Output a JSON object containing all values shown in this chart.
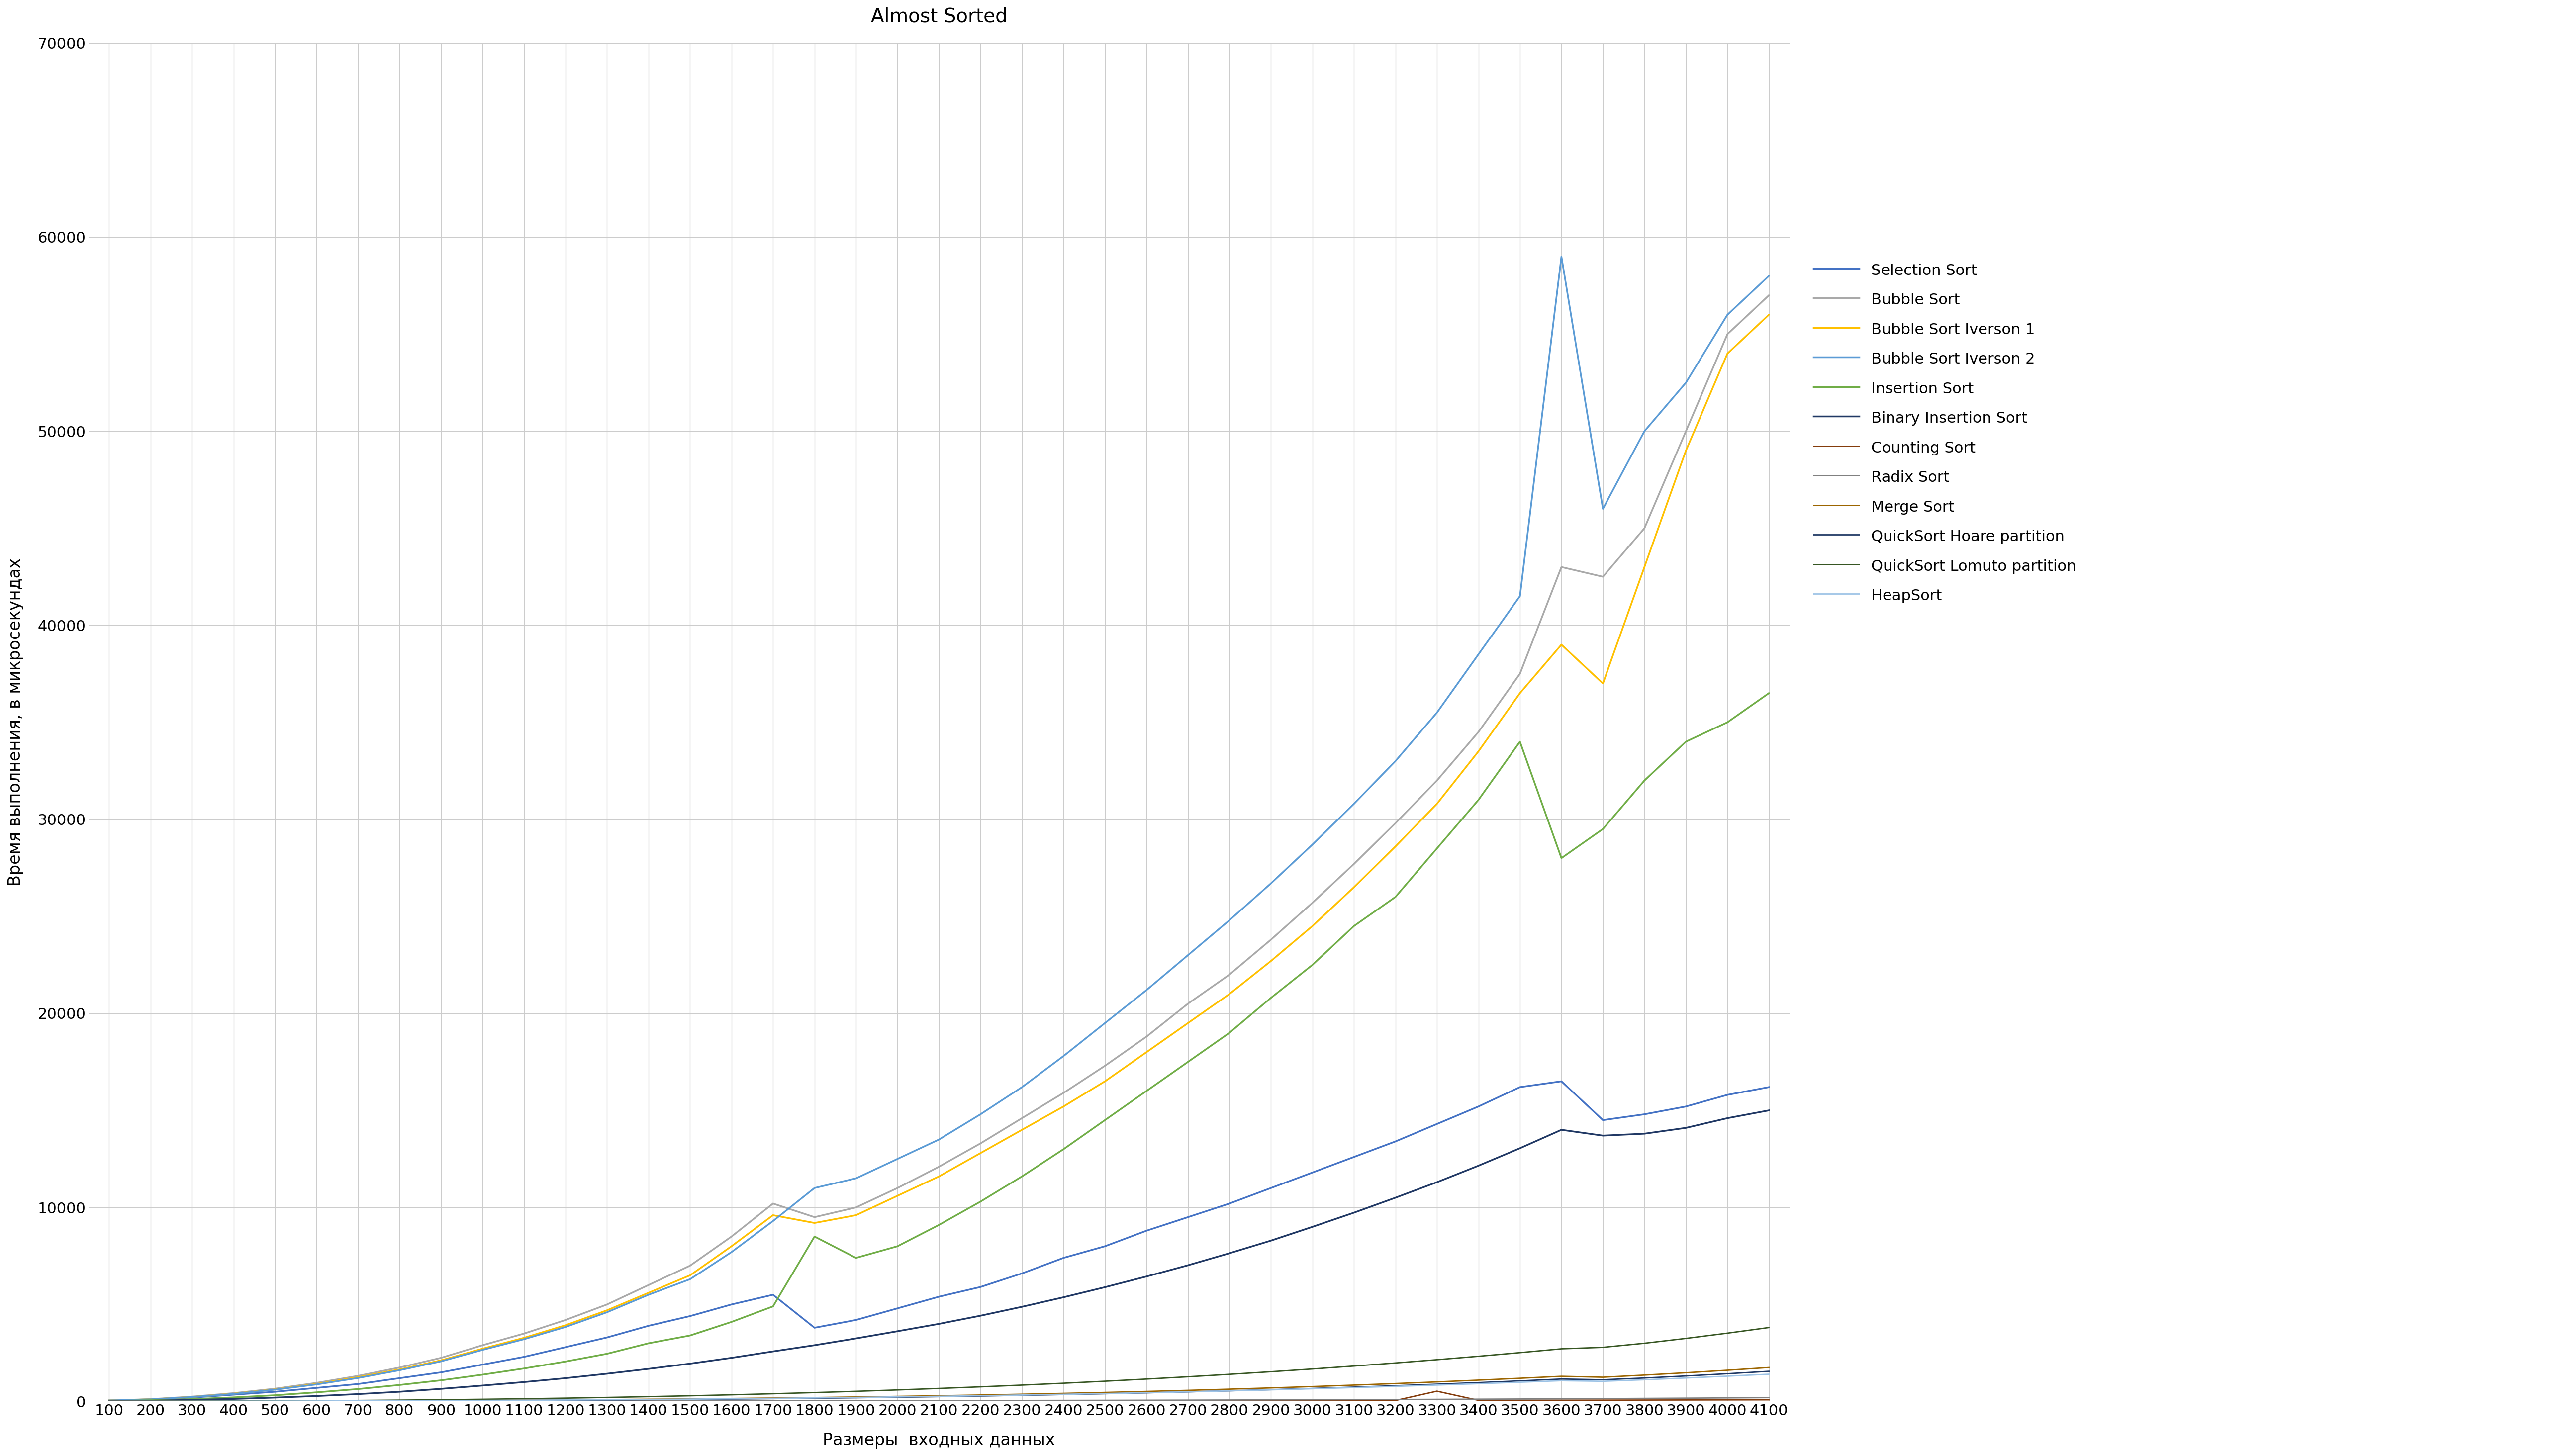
{
  "title": "Almost Sorted",
  "xlabel": "Размеры  входных данных",
  "ylabel": "Время выполнения, в микросекундах",
  "x": [
    100,
    200,
    300,
    400,
    500,
    600,
    700,
    800,
    900,
    1000,
    1100,
    1200,
    1300,
    1400,
    1500,
    1600,
    1700,
    1800,
    1900,
    2000,
    2100,
    2200,
    2300,
    2400,
    2500,
    2600,
    2700,
    2800,
    2900,
    3000,
    3100,
    3200,
    3300,
    3400,
    3500,
    3600,
    3700,
    3800,
    3900,
    4000,
    4100
  ],
  "series": {
    "Selection Sort": {
      "color": "#4472C4",
      "linewidth": 2.5,
      "values": [
        50,
        100,
        200,
        350,
        500,
        700,
        900,
        1200,
        1500,
        1900,
        2300,
        2800,
        3300,
        3900,
        4400,
        5000,
        5500,
        3800,
        4200,
        4800,
        5400,
        5900,
        6600,
        7400,
        8000,
        8800,
        9500,
        10200,
        11000,
        11800,
        12600,
        13400,
        14300,
        15200,
        16200,
        16500,
        14500,
        14800,
        15200,
        15800,
        16200
      ]
    },
    "Bubble Sort": {
      "color": "#A9A9A9",
      "linewidth": 2.5,
      "values": [
        50,
        120,
        250,
        430,
        660,
        960,
        1320,
        1750,
        2250,
        2900,
        3500,
        4200,
        5000,
        6000,
        7000,
        8500,
        10200,
        9500,
        10000,
        11000,
        12100,
        13300,
        14600,
        15900,
        17300,
        18800,
        20500,
        22000,
        23800,
        25700,
        27700,
        29800,
        32000,
        34500,
        37500,
        43000,
        42500,
        45000,
        50000,
        55000,
        57000
      ]
    },
    "Bubble Sort Iverson 1": {
      "color": "#FFC000",
      "linewidth": 2.5,
      "values": [
        50,
        110,
        230,
        400,
        620,
        900,
        1250,
        1650,
        2120,
        2720,
        3280,
        3930,
        4700,
        5600,
        6500,
        8000,
        9600,
        9200,
        9600,
        10600,
        11600,
        12800,
        14000,
        15200,
        16500,
        18000,
        19500,
        21000,
        22700,
        24500,
        26500,
        28600,
        30800,
        33500,
        36500,
        39000,
        37000,
        43000,
        49000,
        54000,
        56000
      ]
    },
    "Bubble Sort Iverson 2": {
      "color": "#5B9BD5",
      "linewidth": 2.5,
      "values": [
        50,
        110,
        230,
        390,
        610,
        880,
        1210,
        1610,
        2070,
        2660,
        3210,
        3840,
        4600,
        5500,
        6300,
        7700,
        9300,
        11000,
        11500,
        12500,
        13500,
        14800,
        16200,
        17800,
        19500,
        21200,
        23000,
        24800,
        26700,
        28700,
        30800,
        33000,
        35500,
        38500,
        41500,
        59000,
        46000,
        50000,
        52500,
        56000,
        58000
      ]
    },
    "Insertion Sort": {
      "color": "#70AD47",
      "linewidth": 2.5,
      "values": [
        30,
        60,
        120,
        210,
        320,
        470,
        640,
        850,
        1090,
        1380,
        1700,
        2060,
        2460,
        3000,
        3400,
        4100,
        4900,
        8500,
        7400,
        8000,
        9100,
        10300,
        11600,
        13000,
        14500,
        16000,
        17500,
        19000,
        20800,
        22500,
        24500,
        26000,
        28500,
        31000,
        34000,
        28000,
        29500,
        32000,
        34000,
        35000,
        36500
      ]
    },
    "Binary Insertion Sort": {
      "color": "#203864",
      "linewidth": 2.5,
      "values": [
        20,
        40,
        80,
        130,
        200,
        280,
        380,
        500,
        650,
        820,
        1000,
        1200,
        1430,
        1680,
        1950,
        2250,
        2580,
        2900,
        3250,
        3620,
        4000,
        4420,
        4880,
        5370,
        5890,
        6440,
        7020,
        7640,
        8290,
        9000,
        9730,
        10500,
        11300,
        12150,
        13050,
        14000,
        13700,
        13800,
        14100,
        14600,
        15000
      ]
    },
    "Counting Sort": {
      "color": "#843C0C",
      "linewidth": 2.0,
      "values": [
        5,
        5,
        6,
        7,
        8,
        8,
        9,
        10,
        11,
        12,
        13,
        14,
        15,
        16,
        17,
        18,
        19,
        20,
        21,
        22,
        24,
        25,
        27,
        29,
        31,
        33,
        36,
        38,
        41,
        44,
        47,
        50,
        530,
        58,
        62,
        65,
        68,
        72,
        76,
        80,
        84
      ]
    },
    "Radix Sort": {
      "color": "#808080",
      "linewidth": 2.0,
      "values": [
        5,
        6,
        7,
        8,
        9,
        10,
        11,
        13,
        14,
        16,
        17,
        19,
        21,
        23,
        25,
        28,
        30,
        33,
        36,
        39,
        42,
        46,
        50,
        54,
        58,
        63,
        68,
        74,
        80,
        86,
        93,
        100,
        108,
        117,
        126,
        136,
        147,
        158,
        170,
        183,
        197
      ]
    },
    "Merge Sort": {
      "color": "#9C6500",
      "linewidth": 2.0,
      "values": [
        5,
        7,
        10,
        14,
        18,
        23,
        29,
        37,
        46,
        56,
        68,
        81,
        96,
        113,
        132,
        153,
        176,
        202,
        230,
        261,
        295,
        332,
        373,
        417,
        465,
        517,
        573,
        634,
        699,
        769,
        844,
        924,
        1009,
        1100,
        1196,
        1298,
        1250,
        1360,
        1480,
        1610,
        1750
      ]
    },
    "QuickSort Hoare partition": {
      "color": "#1F3864",
      "linewidth": 2.0,
      "values": [
        5,
        7,
        9,
        12,
        15,
        19,
        24,
        30,
        37,
        45,
        54,
        65,
        77,
        91,
        107,
        125,
        145,
        167,
        191,
        218,
        248,
        281,
        317,
        356,
        399,
        445,
        495,
        549,
        608,
        671,
        739,
        812,
        890,
        973,
        1062,
        1157,
        1120,
        1210,
        1315,
        1430,
        1555
      ]
    },
    "QuickSort Lomuto partition": {
      "color": "#375623",
      "linewidth": 2.0,
      "values": [
        5,
        8,
        13,
        19,
        27,
        38,
        51,
        68,
        88,
        112,
        139,
        171,
        207,
        248,
        293,
        343,
        398,
        458,
        523,
        594,
        671,
        754,
        844,
        940,
        1044,
        1155,
        1273,
        1399,
        1533,
        1675,
        1826,
        1985,
        2153,
        2330,
        2517,
        2714,
        2790,
        3000,
        3250,
        3520,
        3810
      ]
    },
    "HeapSort": {
      "color": "#9DC3E6",
      "linewidth": 2.0,
      "values": [
        4,
        6,
        9,
        13,
        17,
        22,
        28,
        35,
        43,
        52,
        63,
        75,
        88,
        103,
        120,
        139,
        160,
        183,
        208,
        235,
        264,
        296,
        331,
        368,
        408,
        451,
        497,
        547,
        600,
        656,
        716,
        779,
        846,
        917,
        992,
        1071,
        1040,
        1120,
        1210,
        1305,
        1405
      ]
    }
  },
  "ylim": [
    0,
    70000
  ],
  "yticks": [
    0,
    10000,
    20000,
    30000,
    40000,
    50000,
    60000,
    70000
  ],
  "xlim": [
    100,
    4100
  ],
  "xticks": [
    100,
    200,
    300,
    400,
    500,
    600,
    700,
    800,
    900,
    1000,
    1100,
    1200,
    1300,
    1400,
    1500,
    1600,
    1700,
    1800,
    1900,
    2000,
    2100,
    2200,
    2300,
    2400,
    2500,
    2600,
    2700,
    2800,
    2900,
    3000,
    3100,
    3200,
    3300,
    3400,
    3500,
    3600,
    3700,
    3800,
    3900,
    4000,
    4100
  ],
  "grid": true,
  "background_color": "#FFFFFF",
  "legend_entries": [
    "Selection Sort",
    "Bubble Sort",
    "Bubble Sort Iverson 1",
    "Bubble Sort Iverson 2",
    "Insertion Sort",
    "Binary Insertion Sort",
    "Counting Sort",
    "Radix Sort",
    "Merge Sort",
    "QuickSort Hoare partition",
    "QuickSort Lomuto partition",
    "HeapSort"
  ]
}
